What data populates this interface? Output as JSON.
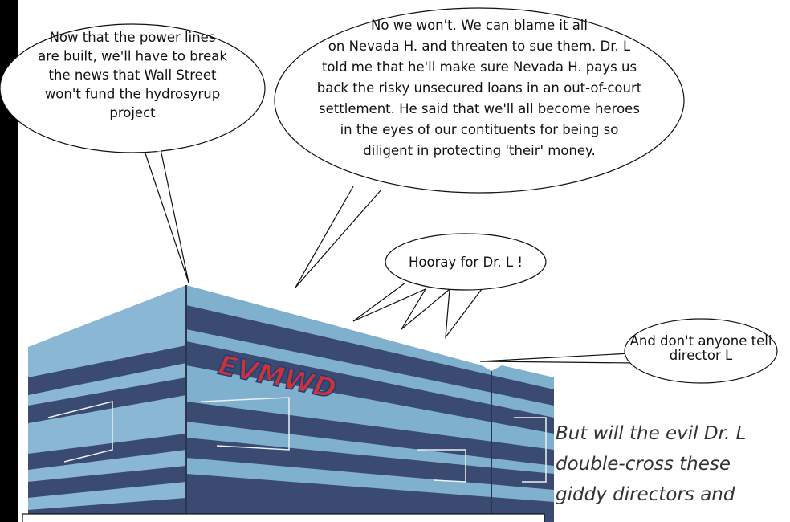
{
  "bubbles": [
    {
      "lines": [
        "Now that the power lines",
        "are built, we'll have to break",
        "the news that Wall Street",
        "won't fund the hydrosyrup",
        "project"
      ]
    },
    {
      "lines": [
        "No we won't. We can blame it all",
        "on Nevada H. and threaten to sue them. Dr. L",
        "told me that he'll make sure Nevada H. pays us",
        "back the risky unsecured loans in an out-of-court",
        "settlement. He said that we'll all become heroes",
        "in the eyes of our contituents for being so",
        "diligent in protecting 'their' money."
      ]
    },
    {
      "lines": [
        "Hooray for Dr. L !"
      ]
    },
    {
      "lines": [
        "And don't anyone tell",
        "director L"
      ]
    }
  ],
  "logo": "EVMWD",
  "caption": {
    "lines": [
      "But will the evil Dr. L",
      "double-cross these",
      "giddy directors and"
    ]
  }
}
